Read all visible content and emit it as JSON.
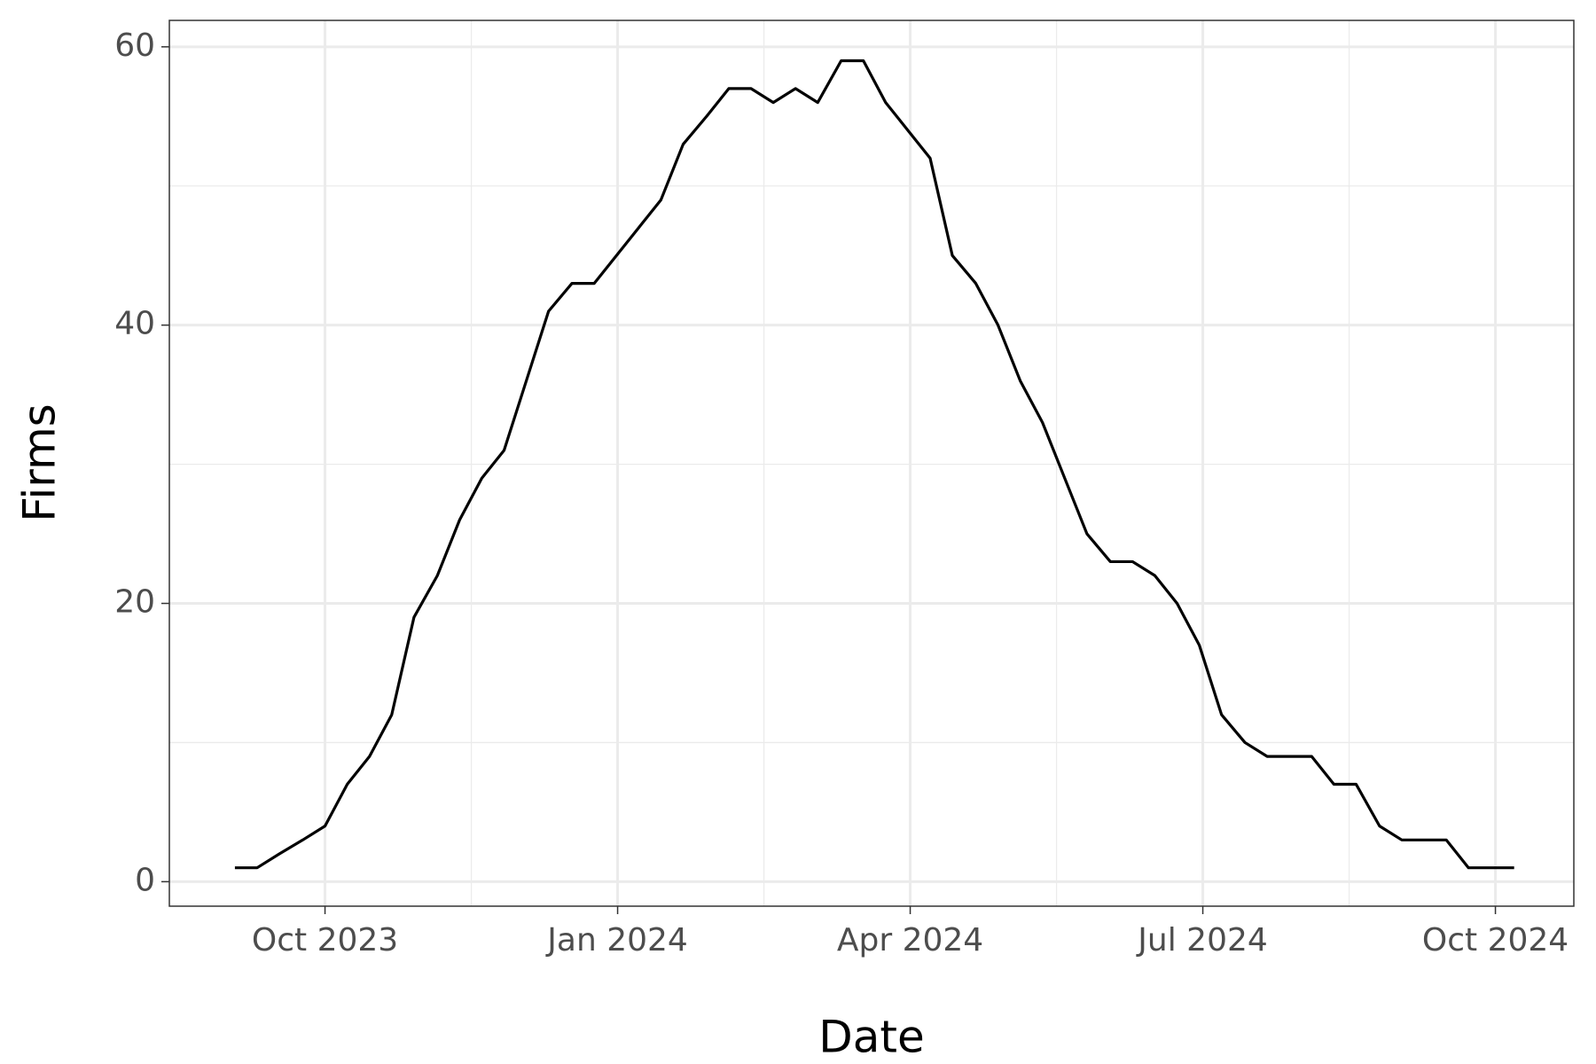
{
  "chart_data": {
    "type": "line",
    "x_label": "Date",
    "y_label": "Firms",
    "x": [
      2023.673,
      2023.692,
      2023.711,
      2023.731,
      2023.75,
      2023.769,
      2023.788,
      2023.807,
      2023.826,
      2023.846,
      2023.865,
      2023.884,
      2023.903,
      2023.922,
      2023.941,
      2023.961,
      2023.98,
      2023.999,
      2024.018,
      2024.037,
      2024.056,
      2024.076,
      2024.095,
      2024.114,
      2024.133,
      2024.152,
      2024.171,
      2024.191,
      2024.21,
      2024.229,
      2024.248,
      2024.267,
      2024.286,
      2024.306,
      2024.325,
      2024.344,
      2024.363,
      2024.382,
      2024.401,
      2024.421,
      2024.44,
      2024.459,
      2024.478,
      2024.497,
      2024.516,
      2024.536,
      2024.555,
      2024.574,
      2024.593,
      2024.612,
      2024.631,
      2024.651,
      2024.67,
      2024.689,
      2024.708,
      2024.727,
      2024.746,
      2024.766
    ],
    "series": [
      {
        "color": "#000000",
        "values": [
          1,
          1,
          2,
          3,
          4,
          7,
          9,
          12,
          19,
          22,
          26,
          29,
          31,
          36,
          41,
          43,
          43,
          45,
          47,
          49,
          53,
          55,
          57,
          57,
          56,
          57,
          56,
          59,
          59,
          56,
          54,
          52,
          45,
          43,
          40,
          36,
          33,
          29,
          25,
          23,
          23,
          22,
          20,
          17,
          12,
          10,
          9,
          9,
          9,
          7,
          7,
          4,
          3,
          3,
          3,
          1,
          1,
          1
        ]
      }
    ],
    "xlim": [
      2023.617,
      2024.817
    ],
    "xticks": [
      {
        "value": 2023.75,
        "label": "Oct 2023"
      },
      {
        "value": 2024.0,
        "label": "Jan 2024"
      },
      {
        "value": 2024.25,
        "label": "Apr 2024"
      },
      {
        "value": 2024.5,
        "label": "Jul 2024"
      },
      {
        "value": 2024.75,
        "label": "Oct 2024"
      }
    ],
    "minor_xticks": [
      2023.875,
      2024.125,
      2024.375,
      2024.625
    ],
    "ylim": [
      -1.76,
      61.9
    ],
    "yticks": [
      0,
      20,
      40,
      60
    ],
    "minor_yticks": [
      10,
      30,
      50
    ],
    "grid": true
  }
}
